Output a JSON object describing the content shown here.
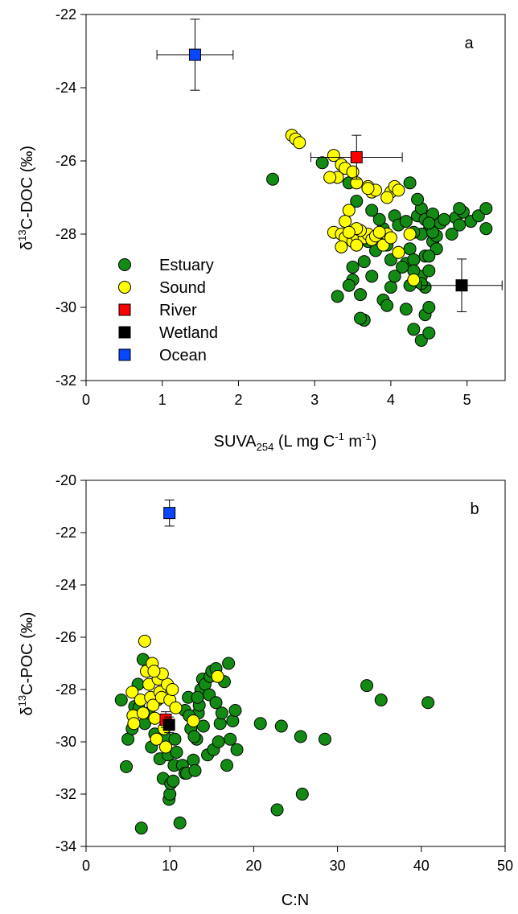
{
  "chart_data": [
    {
      "type": "scatter",
      "panel_label": "a",
      "xlabel": {
        "prefix": "SUVA",
        "sub": "254",
        "mid": " (L mg C",
        "sup1": "-1",
        "mid2": " m",
        "sup2": "-1",
        "suffix": ")"
      },
      "ylabel": {
        "prefix": "δ",
        "sup": "13",
        "suffix": "C-DOC (‰)"
      },
      "xlim": [
        0,
        5.5
      ],
      "ylim": [
        -32,
        -22
      ],
      "xticks": [
        0,
        1,
        2,
        3,
        4,
        5
      ],
      "yticks": [
        -32,
        -30,
        -28,
        -26,
        -24,
        -22
      ],
      "legend": {
        "placement": "lower-left",
        "items": [
          {
            "label": "Estuary",
            "marker": "circle",
            "color": "#138a13"
          },
          {
            "label": "Sound",
            "marker": "circle",
            "color": "#ffff00"
          },
          {
            "label": "River",
            "marker": "square",
            "color": "#ff0000"
          },
          {
            "label": "Wetland",
            "marker": "square",
            "color": "#000000"
          },
          {
            "label": "Ocean",
            "marker": "square",
            "color": "#0a46ff"
          }
        ]
      },
      "series": [
        {
          "name": "Estuary",
          "marker": "circle",
          "color": "#138a13",
          "points": [
            [
              2.45,
              -26.5
            ],
            [
              3.1,
              -26.05
            ],
            [
              3.45,
              -26.6
            ],
            [
              3.55,
              -27.1
            ],
            [
              3.5,
              -28.9
            ],
            [
              3.5,
              -29.25
            ],
            [
              3.45,
              -29.4
            ],
            [
              3.6,
              -29.65
            ],
            [
              3.65,
              -30.35
            ],
            [
              3.6,
              -30.3
            ],
            [
              3.3,
              -29.7
            ],
            [
              3.55,
              -28.3
            ],
            [
              3.45,
              -28.05
            ],
            [
              3.65,
              -28.75
            ],
            [
              3.75,
              -29.15
            ],
            [
              3.9,
              -29.8
            ],
            [
              3.95,
              -29.95
            ],
            [
              4.0,
              -29.45
            ],
            [
              3.8,
              -28.45
            ],
            [
              3.9,
              -27.85
            ],
            [
              3.95,
              -28.3
            ],
            [
              4.0,
              -28.7
            ],
            [
              4.1,
              -28.5
            ],
            [
              4.2,
              -28.8
            ],
            [
              4.25,
              -28.4
            ],
            [
              4.3,
              -28.7
            ],
            [
              4.35,
              -29.3
            ],
            [
              4.2,
              -30.05
            ],
            [
              4.3,
              -30.6
            ],
            [
              4.45,
              -30.2
            ],
            [
              4.4,
              -30.9
            ],
            [
              4.5,
              -30.7
            ],
            [
              4.5,
              -30.0
            ],
            [
              4.45,
              -29.45
            ],
            [
              4.4,
              -29.15
            ],
            [
              4.5,
              -29.0
            ],
            [
              4.45,
              -28.6
            ],
            [
              4.55,
              -28.2
            ],
            [
              4.6,
              -28.05
            ],
            [
              4.5,
              -27.9
            ],
            [
              4.4,
              -28.0
            ],
            [
              4.35,
              -27.5
            ],
            [
              4.4,
              -27.3
            ],
            [
              4.35,
              -27.05
            ],
            [
              4.25,
              -26.6
            ],
            [
              4.45,
              -27.6
            ],
            [
              4.55,
              -27.45
            ],
            [
              4.65,
              -27.7
            ],
            [
              4.8,
              -28.0
            ],
            [
              4.85,
              -27.55
            ],
            [
              4.95,
              -27.4
            ],
            [
              4.9,
              -27.3
            ],
            [
              5.05,
              -27.65
            ],
            [
              5.15,
              -27.5
            ],
            [
              5.25,
              -27.3
            ],
            [
              5.25,
              -27.85
            ],
            [
              4.9,
              -27.75
            ],
            [
              4.55,
              -27.95
            ],
            [
              4.6,
              -28.4
            ],
            [
              4.5,
              -28.6
            ],
            [
              4.3,
              -29.0
            ],
            [
              4.15,
              -28.9
            ],
            [
              4.05,
              -29.15
            ],
            [
              3.85,
              -27.6
            ],
            [
              3.75,
              -27.35
            ],
            [
              4.05,
              -27.5
            ],
            [
              4.1,
              -27.75
            ],
            [
              4.2,
              -27.65
            ],
            [
              4.3,
              -27.95
            ],
            [
              4.5,
              -27.7
            ],
            [
              4.7,
              -27.6
            ],
            [
              3.7,
              -28.2
            ],
            [
              3.9,
              -28.2
            ],
            [
              4.25,
              -29.4
            ],
            [
              4.4,
              -29.35
            ]
          ]
        },
        {
          "name": "Sound",
          "marker": "circle",
          "color": "#ffff00",
          "points": [
            [
              2.7,
              -25.3
            ],
            [
              2.75,
              -25.4
            ],
            [
              2.8,
              -25.5
            ],
            [
              3.25,
              -25.85
            ],
            [
              3.35,
              -26.1
            ],
            [
              3.4,
              -26.2
            ],
            [
              3.5,
              -26.3
            ],
            [
              3.3,
              -26.45
            ],
            [
              3.2,
              -26.45
            ],
            [
              3.55,
              -26.6
            ],
            [
              3.7,
              -26.7
            ],
            [
              3.75,
              -26.85
            ],
            [
              3.8,
              -26.8
            ],
            [
              3.7,
              -26.75
            ],
            [
              4.0,
              -26.85
            ],
            [
              4.05,
              -26.7
            ],
            [
              4.1,
              -26.8
            ],
            [
              3.95,
              -27.0
            ],
            [
              3.45,
              -27.35
            ],
            [
              3.4,
              -27.65
            ],
            [
              3.25,
              -27.95
            ],
            [
              3.35,
              -28.0
            ],
            [
              3.4,
              -28.1
            ],
            [
              3.5,
              -28.2
            ],
            [
              3.55,
              -28.05
            ],
            [
              3.65,
              -28.1
            ],
            [
              3.7,
              -28.0
            ],
            [
              3.75,
              -28.15
            ],
            [
              3.8,
              -28.05
            ],
            [
              3.9,
              -28.3
            ],
            [
              3.95,
              -28.0
            ],
            [
              4.0,
              -28.1
            ],
            [
              3.6,
              -27.9
            ],
            [
              3.55,
              -27.85
            ],
            [
              3.45,
              -27.95
            ],
            [
              4.25,
              -28.0
            ],
            [
              4.1,
              -28.5
            ],
            [
              3.55,
              -28.3
            ],
            [
              3.35,
              -28.35
            ],
            [
              4.3,
              -29.25
            ],
            [
              3.85,
              -27.95
            ]
          ]
        },
        {
          "name": "River",
          "marker": "square",
          "color": "#ff0000",
          "points": [
            [
              3.55,
              -25.9
            ]
          ],
          "xerr": [
            0.6
          ],
          "yerr": [
            0.6
          ]
        },
        {
          "name": "Wetland",
          "marker": "square",
          "color": "#000000",
          "points": [
            [
              4.93,
              -29.4
            ]
          ],
          "xerr": [
            0.53
          ],
          "yerr": [
            0.72
          ]
        },
        {
          "name": "Ocean",
          "marker": "square",
          "color": "#0a46ff",
          "points": [
            [
              1.43,
              -23.1
            ]
          ],
          "xerr": [
            0.5
          ],
          "yerr": [
            0.97
          ]
        }
      ]
    },
    {
      "type": "scatter",
      "panel_label": "b",
      "xlabel": {
        "text": "C:N"
      },
      "ylabel": {
        "prefix": "δ",
        "sup": "13",
        "suffix": "C-POC (‰)"
      },
      "xlim": [
        0,
        50
      ],
      "ylim": [
        -34,
        -20
      ],
      "xticks": [
        0,
        10,
        20,
        30,
        40,
        50
      ],
      "yticks": [
        -34,
        -32,
        -30,
        -28,
        -26,
        -24,
        -22,
        -20
      ],
      "series": [
        {
          "name": "Estuary",
          "marker": "circle",
          "color": "#138a13",
          "points": [
            [
              4.2,
              -28.4
            ],
            [
              4.8,
              -30.95
            ],
            [
              5.0,
              -29.9
            ],
            [
              5.5,
              -29.5
            ],
            [
              5.8,
              -28.65
            ],
            [
              6.2,
              -27.8
            ],
            [
              6.3,
              -28.7
            ],
            [
              6.6,
              -33.3
            ],
            [
              6.8,
              -26.85
            ],
            [
              7.0,
              -29.3
            ],
            [
              7.5,
              -28.9
            ],
            [
              7.8,
              -30.2
            ],
            [
              8.2,
              -29.7
            ],
            [
              8.5,
              -28.4
            ],
            [
              8.8,
              -30.65
            ],
            [
              9.2,
              -31.4
            ],
            [
              9.5,
              -29.85
            ],
            [
              9.8,
              -30.5
            ],
            [
              9.9,
              -32.2
            ],
            [
              10.0,
              -32.0
            ],
            [
              10.1,
              -31.6
            ],
            [
              10.4,
              -31.5
            ],
            [
              10.5,
              -30.9
            ],
            [
              10.6,
              -29.9
            ],
            [
              10.8,
              -30.4
            ],
            [
              11.2,
              -33.1
            ],
            [
              11.5,
              -30.9
            ],
            [
              11.8,
              -31.2
            ],
            [
              12.0,
              -31.2
            ],
            [
              12.2,
              -28.3
            ],
            [
              12.5,
              -29.5
            ],
            [
              12.8,
              -30.7
            ],
            [
              13.0,
              -31.1
            ],
            [
              13.2,
              -29.9
            ],
            [
              13.4,
              -28.9
            ],
            [
              13.5,
              -28.6
            ],
            [
              13.7,
              -28.0
            ],
            [
              13.9,
              -27.6
            ],
            [
              14.2,
              -27.8
            ],
            [
              14.5,
              -30.5
            ],
            [
              14.7,
              -28.2
            ],
            [
              14.8,
              -27.5
            ],
            [
              15.0,
              -27.3
            ],
            [
              15.2,
              -30.3
            ],
            [
              15.5,
              -27.2
            ],
            [
              15.8,
              -30.0
            ],
            [
              16.0,
              -29.3
            ],
            [
              16.2,
              -28.9
            ],
            [
              16.5,
              -27.7
            ],
            [
              16.8,
              -30.9
            ],
            [
              17.0,
              -27.0
            ],
            [
              17.2,
              -29.9
            ],
            [
              17.5,
              -29.2
            ],
            [
              17.8,
              -28.8
            ],
            [
              18.0,
              -30.3
            ],
            [
              20.8,
              -29.3
            ],
            [
              22.8,
              -32.6
            ],
            [
              23.3,
              -29.4
            ],
            [
              25.6,
              -29.8
            ],
            [
              25.8,
              -32.0
            ],
            [
              28.5,
              -29.9
            ],
            [
              33.5,
              -27.85
            ],
            [
              35.2,
              -28.4
            ],
            [
              40.8,
              -28.5
            ],
            [
              12.9,
              -29.8
            ],
            [
              11.8,
              -28.8
            ],
            [
              15.5,
              -28.5
            ],
            [
              14.0,
              -29.4
            ],
            [
              13.3,
              -28.3
            ],
            [
              12.3,
              -29.0
            ]
          ]
        },
        {
          "name": "Sound",
          "marker": "circle",
          "color": "#ffff00",
          "points": [
            [
              5.5,
              -28.1
            ],
            [
              5.6,
              -29.0
            ],
            [
              5.7,
              -29.3
            ],
            [
              6.5,
              -28.4
            ],
            [
              6.8,
              -28.9
            ],
            [
              7.0,
              -26.15
            ],
            [
              7.2,
              -27.3
            ],
            [
              7.5,
              -27.8
            ],
            [
              7.7,
              -28.3
            ],
            [
              7.9,
              -27.0
            ],
            [
              8.0,
              -28.6
            ],
            [
              8.2,
              -29.1
            ],
            [
              8.4,
              -29.9
            ],
            [
              8.6,
              -27.6
            ],
            [
              8.8,
              -28.1
            ],
            [
              9.0,
              -28.3
            ],
            [
              9.3,
              -29.5
            ],
            [
              9.5,
              -30.2
            ],
            [
              9.7,
              -27.8
            ],
            [
              10.0,
              -28.4
            ],
            [
              10.3,
              -28.0
            ],
            [
              10.7,
              -28.7
            ],
            [
              12.8,
              -29.2
            ],
            [
              15.7,
              -27.5
            ],
            [
              9.1,
              -27.4
            ],
            [
              8.1,
              -27.3
            ]
          ]
        },
        {
          "name": "River",
          "marker": "square",
          "color": "#ff0000",
          "points": [
            [
              9.5,
              -29.15
            ]
          ],
          "xerr": [
            0.4
          ],
          "yerr": [
            0.3
          ]
        },
        {
          "name": "Wetland",
          "marker": "square",
          "color": "#000000",
          "points": [
            [
              9.9,
              -29.35
            ]
          ],
          "xerr": [
            0.4
          ],
          "yerr": [
            0.3
          ]
        },
        {
          "name": "Ocean",
          "marker": "square",
          "color": "#0a46ff",
          "points": [
            [
              9.95,
              -21.25
            ]
          ],
          "xerr": [
            0.5
          ],
          "yerr": [
            0.5
          ]
        }
      ]
    }
  ]
}
